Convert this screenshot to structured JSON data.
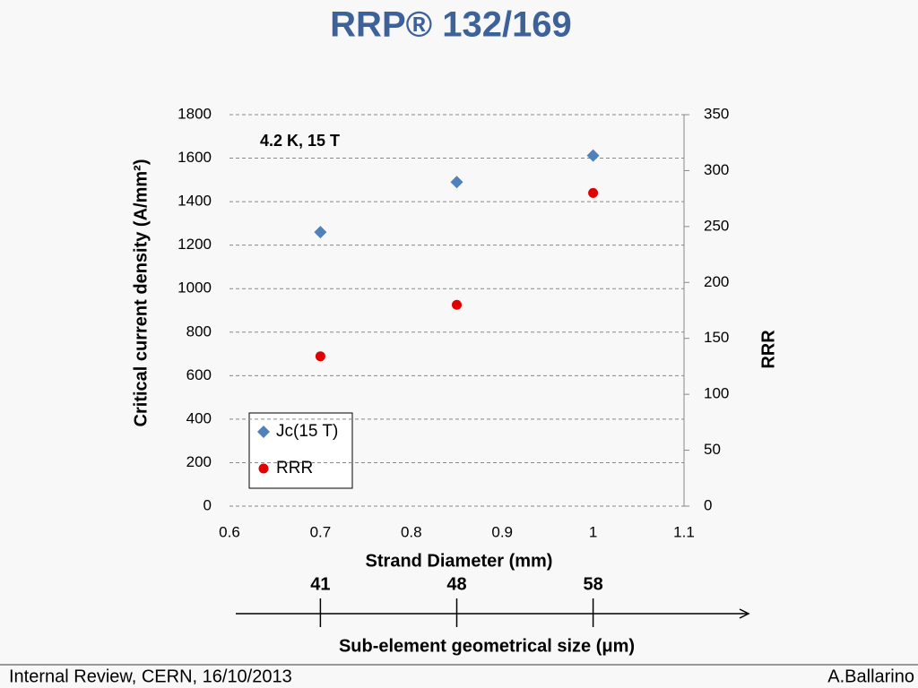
{
  "title": "RRP® 132/169",
  "footer": {
    "left": "Internal Review, CERN, 16/10/2013",
    "right": "A.Ballarino"
  },
  "chart_data": {
    "type": "scatter",
    "annotation": "4.2 K, 15 T",
    "x_label": "Strand Diameter (mm)",
    "y_label": "Critical current density (A/mm²)",
    "y2_label": "RRR",
    "x": [
      0.7,
      0.85,
      1
    ],
    "series": [
      {
        "name": "Jc(15 T)",
        "color": "#4f81bd",
        "marker": "diamond",
        "values": [
          1260,
          1490,
          1612
        ]
      },
      {
        "name": "RRR",
        "color": "#e00000",
        "marker": "circle",
        "axis": "y2",
        "values": [
          134,
          180,
          280
        ]
      }
    ],
    "xlim": [
      0.6,
      1.1
    ],
    "xticks": [
      0.6,
      0.7,
      0.8,
      0.9,
      1,
      1.1
    ],
    "ylim": [
      0,
      1800
    ],
    "yticks": [
      0,
      200,
      400,
      600,
      800,
      1000,
      1200,
      1400,
      1600,
      1800
    ],
    "y2lim": [
      0,
      350
    ],
    "y2ticks": [
      0,
      50,
      100,
      150,
      200,
      250,
      300,
      350
    ],
    "grid": true,
    "legend": "lower left",
    "x2_label": "Sub-element geometrical size (μm)",
    "x2ticks": [
      {
        "value": 0.7,
        "label": "41"
      },
      {
        "value": 0.85,
        "label": "48"
      },
      {
        "value": 1,
        "label": "58"
      }
    ]
  }
}
